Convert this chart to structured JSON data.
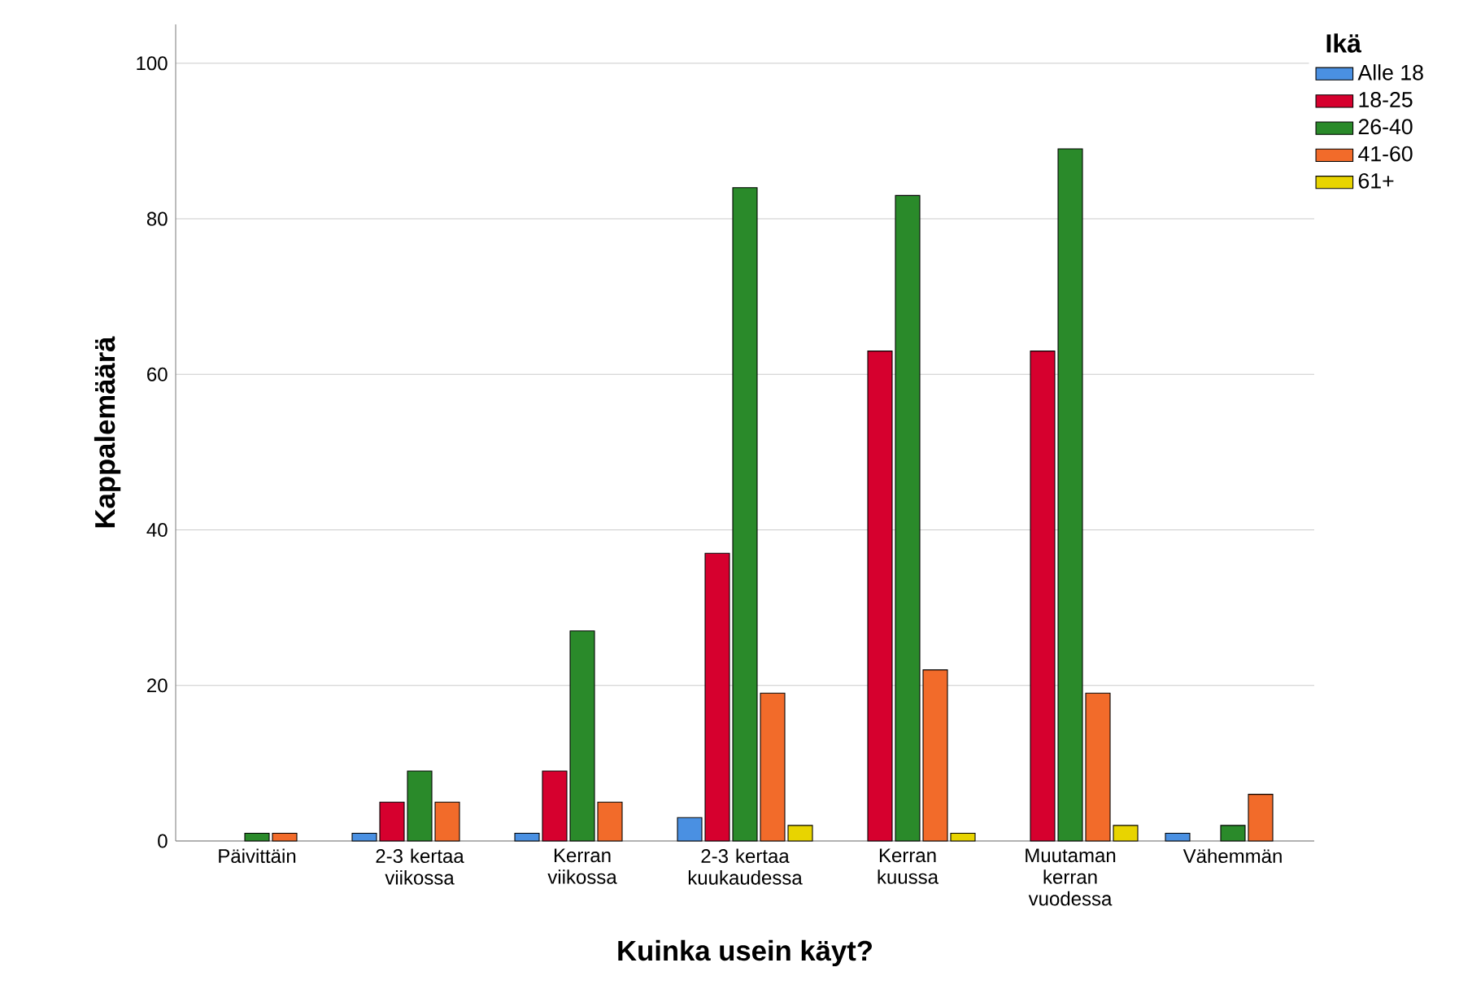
{
  "chart_data": {
    "type": "bar",
    "xlabel": "Kuinka usein käyt?",
    "ylabel": "Kappalemäärä",
    "legend_title": "Ikä",
    "categories": [
      "Päivittäin",
      "2-3 kertaa viikossa",
      "Kerran viikossa",
      "2-3 kertaa kuukaudessa",
      "Kerran kuussa",
      "Muutaman kerran vuodessa",
      "Vähemmän"
    ],
    "series": [
      {
        "name": "Alle 18",
        "color": "#4a90e2",
        "values": [
          null,
          1,
          1,
          3,
          null,
          null,
          1
        ]
      },
      {
        "name": "18-25",
        "color": "#d6002e",
        "values": [
          null,
          5,
          9,
          37,
          63,
          63,
          null
        ]
      },
      {
        "name": "26-40",
        "color": "#2a8a2a",
        "values": [
          1,
          9,
          27,
          84,
          83,
          89,
          2
        ]
      },
      {
        "name": "41-60",
        "color": "#f26b2a",
        "values": [
          1,
          5,
          5,
          19,
          22,
          19,
          6
        ]
      },
      {
        "name": "61+",
        "color": "#e8d400",
        "values": [
          null,
          null,
          null,
          2,
          1,
          2,
          null
        ]
      }
    ],
    "ylim": [
      0,
      105
    ],
    "yticks": [
      0,
      20,
      40,
      60,
      80,
      100
    ],
    "grid": "y",
    "legend": "right"
  }
}
